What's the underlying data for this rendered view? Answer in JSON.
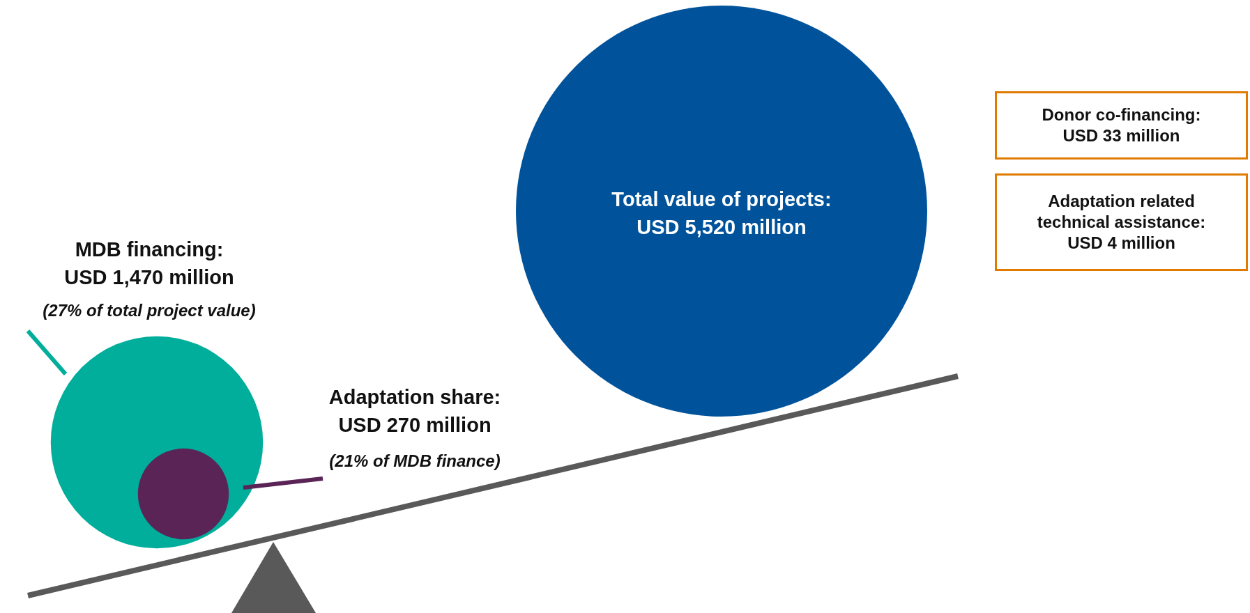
{
  "chart_data": {
    "type": "other",
    "categories": [
      null,
      null,
      null
    ],
    "value_labels": [
      "USD 5,520 million",
      "USD 1,470 million",
      "USD 270 million"
    ],
    "values": [
      5520,
      1470,
      270
    ],
    "colors": [
      "#00539b",
      "#00ae9b",
      "#5a2457"
    ],
    "annotations": [
      "Total value of projects:",
      "MDB financing:",
      "Adaptation share:",
      "(27% of total project value)",
      "(21% of MDB finance)",
      "Donor co-financing:\nUSD 33 million",
      "Adaptation related\ntechnical assistance:\nUSD 4 million"
    ]
  }
}
